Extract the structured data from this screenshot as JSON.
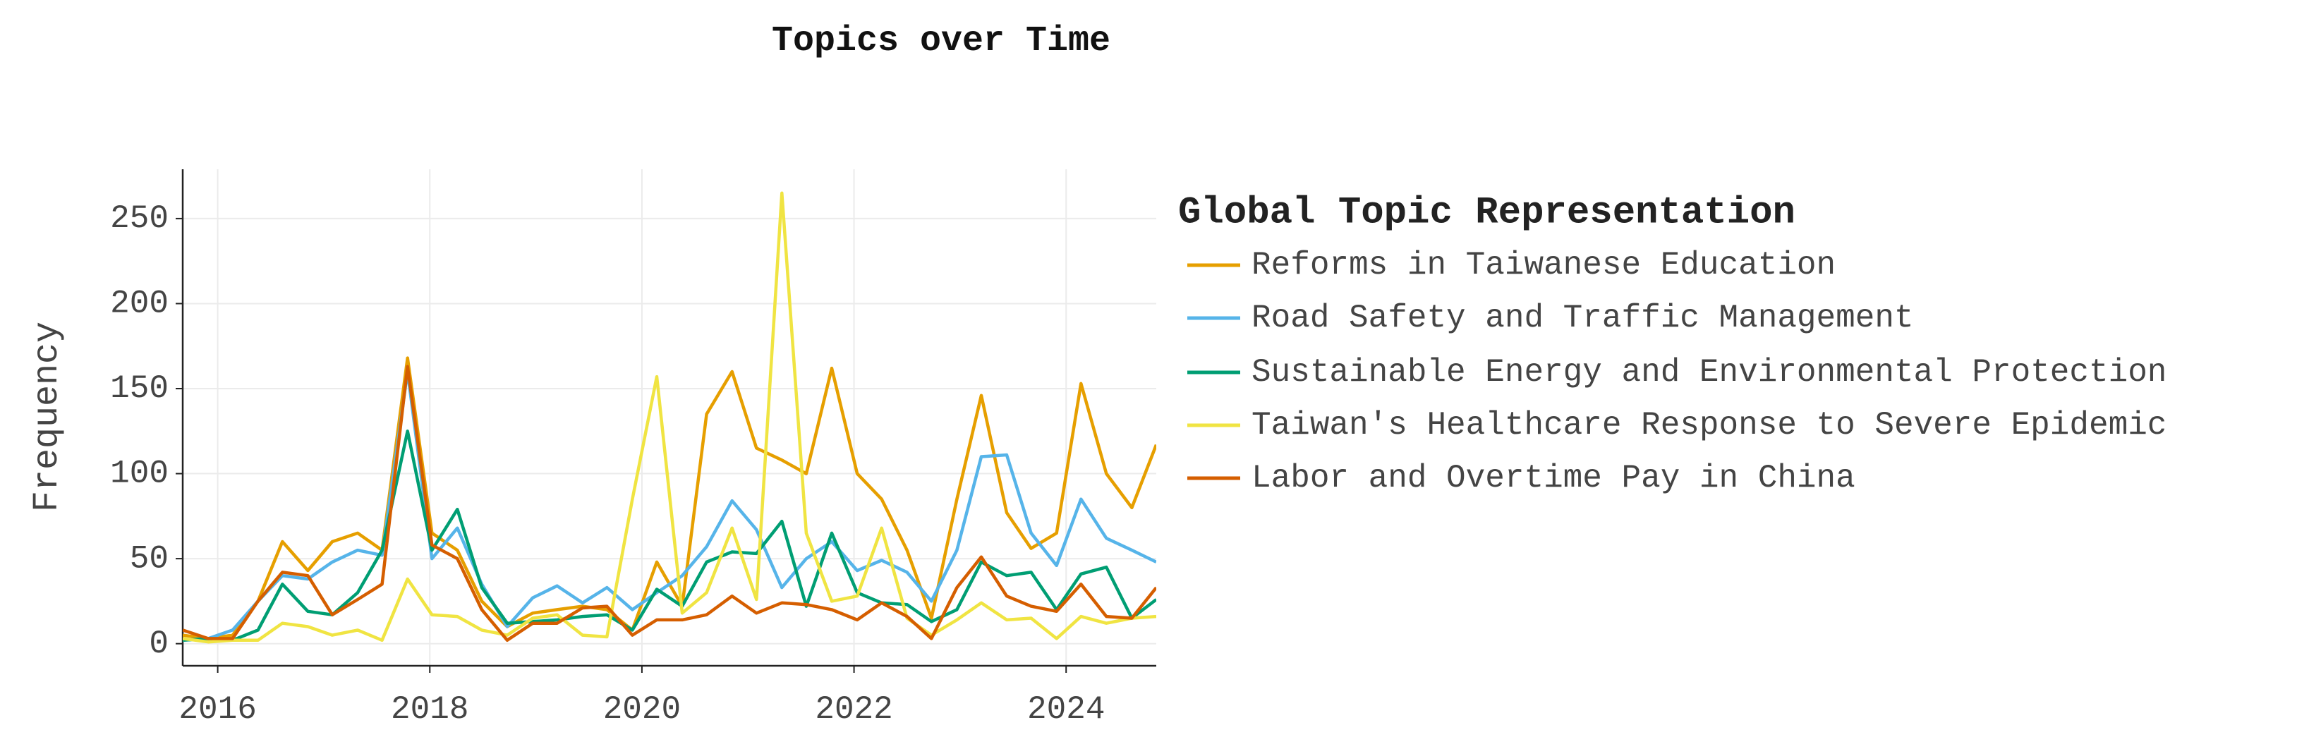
{
  "chart_data": {
    "type": "line",
    "title": "Topics over Time",
    "ylabel": "Frequency",
    "legend_title": "Global Topic Representation",
    "legend": "right",
    "grid": true,
    "x": [
      2015.67,
      2015.91,
      2016.14,
      2016.38,
      2016.61,
      2016.85,
      2017.08,
      2017.32,
      2017.55,
      2017.79,
      2018.02,
      2018.26,
      2018.49,
      2018.73,
      2018.97,
      2019.2,
      2019.44,
      2019.67,
      2019.91,
      2020.14,
      2020.38,
      2020.61,
      2020.85,
      2021.08,
      2021.32,
      2021.55,
      2021.79,
      2022.03,
      2022.26,
      2022.5,
      2022.73,
      2022.97,
      2023.2,
      2023.44,
      2023.67,
      2023.91,
      2024.14,
      2024.38,
      2024.62,
      2024.85
    ],
    "xlim": [
      2015.67,
      2024.85
    ],
    "xticks": [
      2016,
      2018,
      2020,
      2022,
      2024
    ],
    "ylim": [
      -13,
      279
    ],
    "yticks": [
      0,
      50,
      100,
      150,
      200,
      250
    ],
    "series": [
      {
        "name": "Reforms in Taiwanese Education",
        "color": "#E69F00",
        "values": [
          5,
          3,
          5,
          25,
          60,
          43,
          60,
          65,
          55,
          168,
          65,
          55,
          25,
          10,
          18,
          20,
          22,
          20,
          8,
          48,
          22,
          135,
          160,
          115,
          108,
          100,
          162,
          100,
          85,
          55,
          15,
          85,
          146,
          77,
          56,
          65,
          153,
          100,
          80,
          117
        ]
      },
      {
        "name": "Road Safety and Traffic Management",
        "color": "#56B4E9",
        "values": [
          2,
          3,
          8,
          25,
          40,
          38,
          48,
          55,
          52,
          160,
          50,
          68,
          35,
          10,
          27,
          34,
          24,
          33,
          20,
          30,
          40,
          57,
          84,
          67,
          33,
          50,
          60,
          43,
          49,
          42,
          25,
          55,
          110,
          111,
          65,
          46,
          85,
          62,
          55,
          48
        ]
      },
      {
        "name": "Sustainable Energy and Environmental Protection",
        "color": "#009E73",
        "values": [
          2,
          3,
          2,
          8,
          35,
          19,
          17,
          30,
          55,
          125,
          55,
          79,
          33,
          12,
          13,
          14,
          16,
          17,
          8,
          32,
          22,
          48,
          54,
          53,
          72,
          22,
          65,
          30,
          24,
          23,
          13,
          20,
          48,
          40,
          42,
          20,
          41,
          45,
          15,
          26
        ]
      },
      {
        "name": "Taiwan's Healthcare Response to Severe Epidemic",
        "color": "#F0E442",
        "values": [
          3,
          1,
          2,
          2,
          12,
          10,
          5,
          8,
          2,
          38,
          17,
          16,
          8,
          5,
          15,
          17,
          5,
          4,
          85,
          157,
          18,
          30,
          68,
          26,
          265,
          65,
          25,
          28,
          68,
          15,
          5,
          14,
          24,
          14,
          15,
          3,
          16,
          12,
          15,
          16
        ]
      },
      {
        "name": "Labor and Overtime Pay in China",
        "color": "#D55E00",
        "values": [
          8,
          3,
          3,
          25,
          42,
          40,
          17,
          26,
          35,
          163,
          58,
          50,
          20,
          2,
          12,
          12,
          21,
          22,
          5,
          14,
          14,
          17,
          28,
          18,
          24,
          23,
          20,
          14,
          24,
          16,
          3,
          33,
          51,
          28,
          22,
          19,
          35,
          16,
          15,
          33
        ]
      }
    ]
  }
}
